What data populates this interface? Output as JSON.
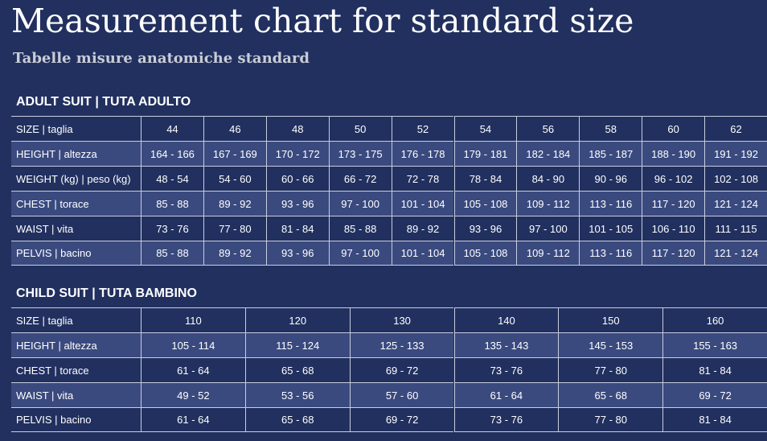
{
  "header": {
    "title": "Measurement chart for standard size",
    "subtitle": "Tabelle misure anatomiche standard"
  },
  "tables": [
    {
      "heading": "ADULT SUIT | TUTA ADULTO",
      "rows": [
        [
          "SIZE | taglia",
          "44",
          "46",
          "48",
          "50",
          "52",
          "54",
          "56",
          "58",
          "60",
          "62"
        ],
        [
          "HEIGHT | altezza",
          "164 - 166",
          "167 - 169",
          "170 - 172",
          "173 - 175",
          "176 - 178",
          "179 - 181",
          "182 - 184",
          "185 - 187",
          "188 - 190",
          "191 - 192"
        ],
        [
          "WEIGHT (kg) | peso (kg)",
          "48 - 54",
          "54 - 60",
          "60 - 66",
          "66 - 72",
          "72 - 78",
          "78 - 84",
          "84 - 90",
          "90 - 96",
          "96 - 102",
          "102 - 108"
        ],
        [
          "CHEST | torace",
          "85 - 88",
          "89 - 92",
          "93 - 96",
          "97 - 100",
          "101 - 104",
          "105 - 108",
          "109 - 112",
          "113 - 116",
          "117 - 120",
          "121 - 124"
        ],
        [
          "WAIST | vita",
          "73 - 76",
          "77 - 80",
          "81 - 84",
          "85 - 88",
          "89 - 92",
          "93 - 96",
          "97 - 100",
          "101 - 105",
          "106 - 110",
          "111 - 115"
        ],
        [
          "PELVIS | bacino",
          "85 - 88",
          "89 - 92",
          "93 - 96",
          "97 - 100",
          "101 - 104",
          "105 - 108",
          "109 - 112",
          "113 - 116",
          "117 - 120",
          "121 - 124"
        ]
      ]
    },
    {
      "heading": "CHILD SUIT | TUTA BAMBINO",
      "rows": [
        [
          "SIZE | taglia",
          "110",
          "120",
          "130",
          "140",
          "150",
          "160"
        ],
        [
          "HEIGHT | altezza",
          "105 - 114",
          "115 - 124",
          "125 - 133",
          "135 - 143",
          "145 - 153",
          "155 - 163"
        ],
        [
          "CHEST | torace",
          "61 - 64",
          "65 - 68",
          "69 - 72",
          "73 - 76",
          "77 - 80",
          "81 - 84"
        ],
        [
          "WAIST | vita",
          "49 - 52",
          "53 - 56",
          "57 - 60",
          "61 - 64",
          "65 - 68",
          "69 - 72"
        ],
        [
          "PELVIS | bacino",
          "61 - 64",
          "65 - 68",
          "69 - 72",
          "73 - 76",
          "77 - 80",
          "81 - 84"
        ]
      ]
    }
  ]
}
